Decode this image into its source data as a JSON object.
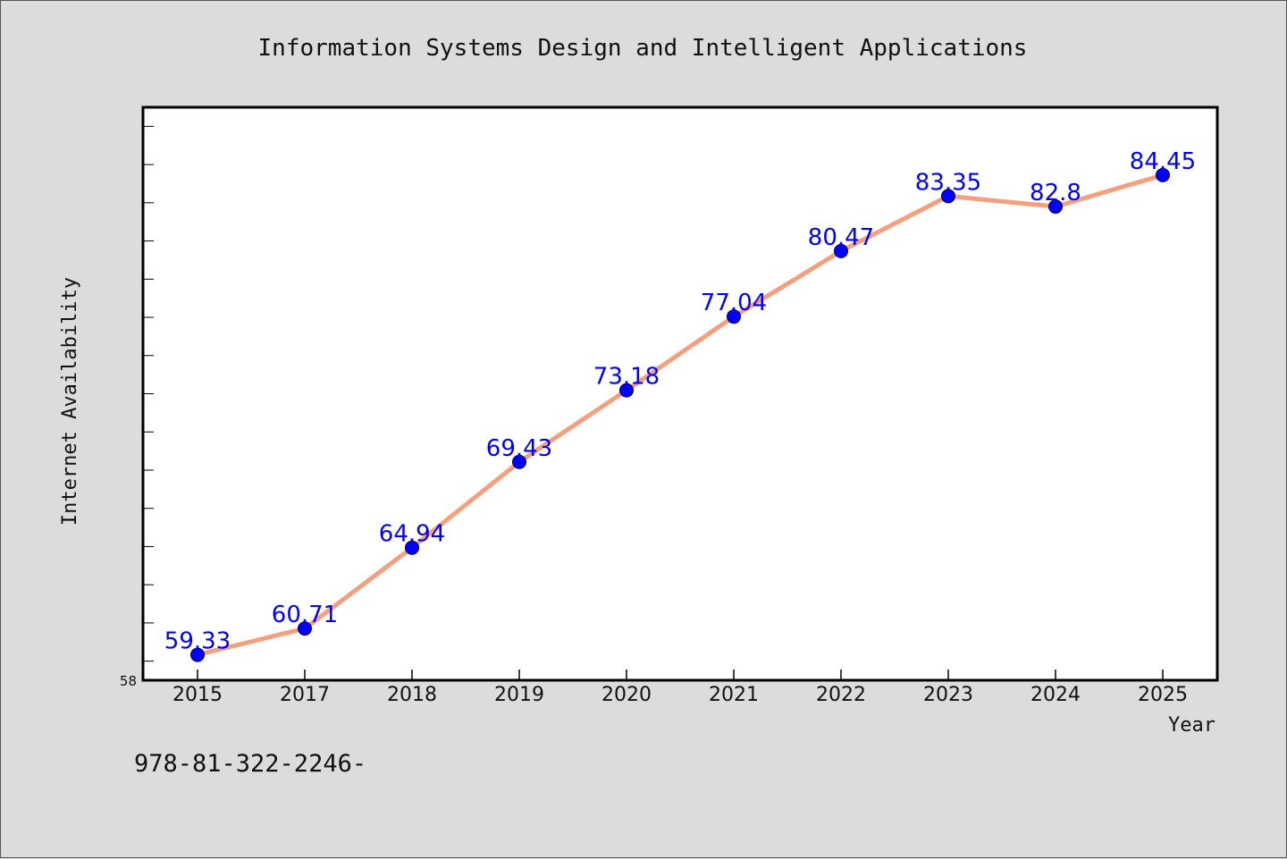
{
  "footer_text": "978-81-322-2246-",
  "colors": {
    "line": "#f4a07e",
    "marker": "#0000ff",
    "data_label": "#0000ff",
    "background": "#dcdcdc",
    "plot_background": "#ffffff"
  },
  "chart_data": {
    "type": "line",
    "title": "Information Systems Design and Intelligent Applications",
    "xlabel": "Year",
    "ylabel": "Internet Availability",
    "categories": [
      "2015",
      "2017",
      "2018",
      "2019",
      "2020",
      "2021",
      "2022",
      "2023",
      "2024",
      "2025"
    ],
    "series": [
      {
        "values": [
          59.33,
          60.71,
          64.94,
          69.43,
          73.18,
          77.04,
          80.47,
          83.35,
          82.8,
          84.45
        ],
        "labels": [
          "59.33",
          "60.71",
          "64.94",
          "69.43",
          "73.18",
          "77.04",
          "80.47",
          "83.35",
          "82.8",
          "84.45"
        ]
      }
    ],
    "ylim": [
      58,
      88
    ],
    "y_tick_labels": [
      "58"
    ],
    "grid": false,
    "legend": "none"
  }
}
